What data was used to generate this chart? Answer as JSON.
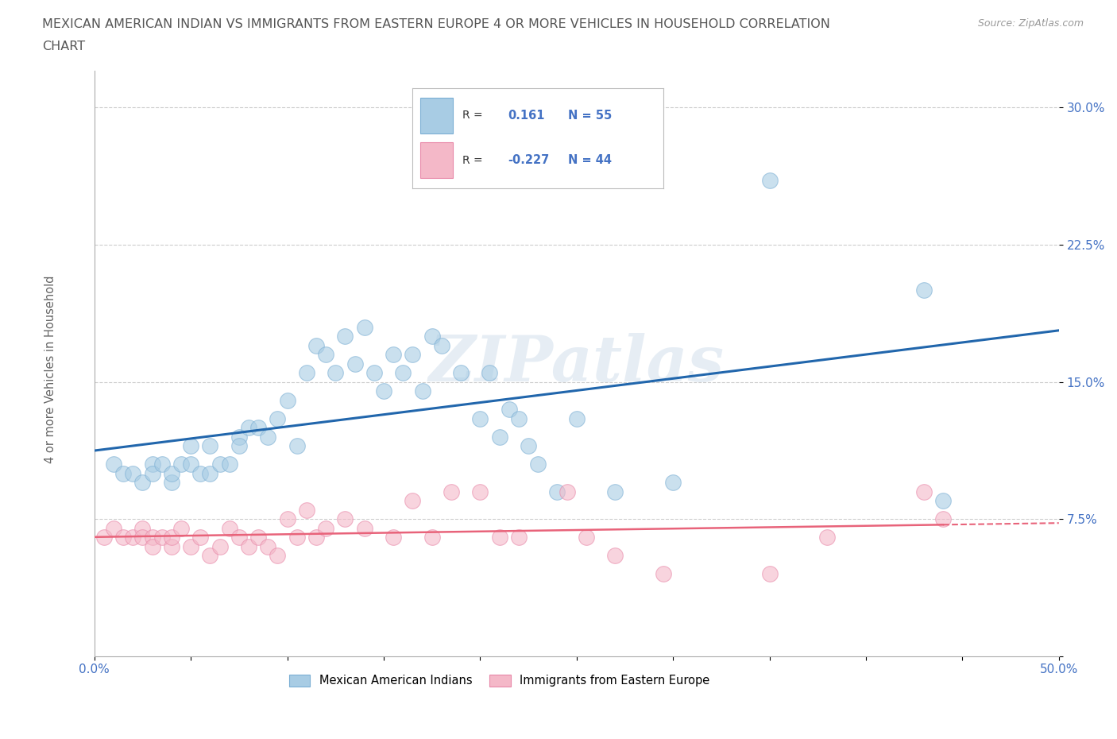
{
  "title_line1": "MEXICAN AMERICAN INDIAN VS IMMIGRANTS FROM EASTERN EUROPE 4 OR MORE VEHICLES IN HOUSEHOLD CORRELATION",
  "title_line2": "CHART",
  "source": "Source: ZipAtlas.com",
  "ylabel": "4 or more Vehicles in Household",
  "xlim": [
    0.0,
    0.5
  ],
  "ylim": [
    0.0,
    0.32
  ],
  "blue_color": "#a8cce4",
  "blue_edge_color": "#7bafd4",
  "pink_color": "#f4b8c8",
  "pink_edge_color": "#e888a8",
  "blue_line_color": "#2166ac",
  "pink_line_color": "#e8637a",
  "R_blue": 0.161,
  "N_blue": 55,
  "R_pink": -0.227,
  "N_pink": 44,
  "watermark": "ZIPatlas",
  "blue_scatter_x": [
    0.01,
    0.015,
    0.02,
    0.025,
    0.03,
    0.03,
    0.035,
    0.04,
    0.04,
    0.045,
    0.05,
    0.05,
    0.055,
    0.06,
    0.06,
    0.065,
    0.07,
    0.075,
    0.075,
    0.08,
    0.085,
    0.09,
    0.095,
    0.1,
    0.105,
    0.11,
    0.115,
    0.12,
    0.125,
    0.13,
    0.135,
    0.14,
    0.145,
    0.15,
    0.155,
    0.16,
    0.165,
    0.17,
    0.175,
    0.18,
    0.19,
    0.2,
    0.205,
    0.21,
    0.215,
    0.22,
    0.225,
    0.23,
    0.24,
    0.25,
    0.27,
    0.3,
    0.35,
    0.43,
    0.44
  ],
  "blue_scatter_y": [
    0.105,
    0.1,
    0.1,
    0.095,
    0.105,
    0.1,
    0.105,
    0.095,
    0.1,
    0.105,
    0.115,
    0.105,
    0.1,
    0.115,
    0.1,
    0.105,
    0.105,
    0.12,
    0.115,
    0.125,
    0.125,
    0.12,
    0.13,
    0.14,
    0.115,
    0.155,
    0.17,
    0.165,
    0.155,
    0.175,
    0.16,
    0.18,
    0.155,
    0.145,
    0.165,
    0.155,
    0.165,
    0.145,
    0.175,
    0.17,
    0.155,
    0.13,
    0.155,
    0.12,
    0.135,
    0.13,
    0.115,
    0.105,
    0.09,
    0.13,
    0.09,
    0.095,
    0.26,
    0.2,
    0.085
  ],
  "pink_scatter_x": [
    0.005,
    0.01,
    0.015,
    0.02,
    0.025,
    0.025,
    0.03,
    0.03,
    0.035,
    0.04,
    0.04,
    0.045,
    0.05,
    0.055,
    0.06,
    0.065,
    0.07,
    0.075,
    0.08,
    0.085,
    0.09,
    0.095,
    0.1,
    0.105,
    0.11,
    0.115,
    0.12,
    0.13,
    0.14,
    0.155,
    0.165,
    0.175,
    0.185,
    0.2,
    0.21,
    0.22,
    0.245,
    0.255,
    0.27,
    0.295,
    0.35,
    0.38,
    0.43,
    0.44
  ],
  "pink_scatter_y": [
    0.065,
    0.07,
    0.065,
    0.065,
    0.07,
    0.065,
    0.065,
    0.06,
    0.065,
    0.06,
    0.065,
    0.07,
    0.06,
    0.065,
    0.055,
    0.06,
    0.07,
    0.065,
    0.06,
    0.065,
    0.06,
    0.055,
    0.075,
    0.065,
    0.08,
    0.065,
    0.07,
    0.075,
    0.07,
    0.065,
    0.085,
    0.065,
    0.09,
    0.09,
    0.065,
    0.065,
    0.09,
    0.065,
    0.055,
    0.045,
    0.045,
    0.065,
    0.09,
    0.075
  ],
  "grid_color": "#cccccc",
  "background_color": "#ffffff",
  "title_color": "#555555",
  "axis_label_color": "#666666",
  "tick_label_color": "#4472c4"
}
